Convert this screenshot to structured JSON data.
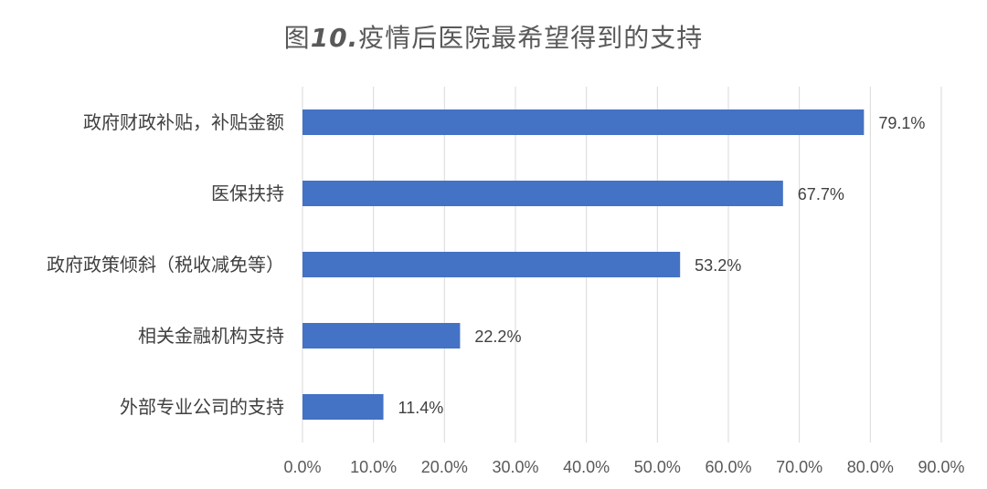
{
  "title": {
    "prefix": "图",
    "number": "10.",
    "text": "疫情后医院最希望得到的支持"
  },
  "colors": {
    "bar": "#4472C4",
    "grid": "#D9D9D9",
    "text": "#595959"
  },
  "chart_data": {
    "type": "bar",
    "orientation": "horizontal",
    "title": "图10.疫情后医院最希望得到的支持",
    "xlabel": "",
    "ylabel": "",
    "categories": [
      "政府财政补贴，补贴金额",
      "医保扶持",
      "政府政策倾斜（税收减免等）",
      "相关金融机构支持",
      "外部专业公司的支持"
    ],
    "values": [
      79.1,
      67.7,
      53.2,
      22.2,
      11.4
    ],
    "data_labels": [
      "79.1%",
      "67.7%",
      "53.2%",
      "22.2%",
      "11.4%"
    ],
    "xlim": [
      0,
      90
    ],
    "x_ticks": [
      0,
      10,
      20,
      30,
      40,
      50,
      60,
      70,
      80,
      90
    ],
    "x_tick_labels": [
      "0.0%",
      "10.0%",
      "20.0%",
      "30.0%",
      "40.0%",
      "50.0%",
      "60.0%",
      "70.0%",
      "80.0%",
      "90.0%"
    ],
    "grid": true,
    "legend": false
  }
}
